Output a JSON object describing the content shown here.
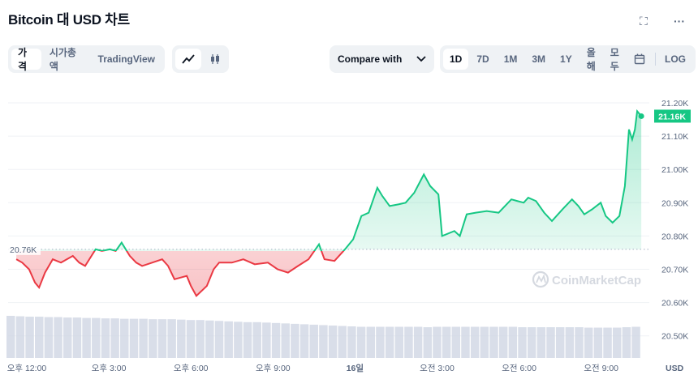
{
  "header": {
    "title": "Bitcoin 대 USD 차트",
    "fullscreen_icon": "expand-icon",
    "more_icon": "more-dots-icon"
  },
  "toolbar": {
    "view_tabs": [
      {
        "label": "가격",
        "active": true
      },
      {
        "label": "시가총액",
        "active": false
      },
      {
        "label": "TradingView",
        "active": false
      }
    ],
    "chart_types": [
      {
        "icon": "line-chart-icon",
        "active": true
      },
      {
        "icon": "candlestick-icon",
        "active": false
      }
    ],
    "compare": {
      "label": "Compare with",
      "icon": "chevron-down-icon"
    },
    "ranges": [
      {
        "label": "1D",
        "active": true
      },
      {
        "label": "7D"
      },
      {
        "label": "1M"
      },
      {
        "label": "3M"
      },
      {
        "label": "1Y"
      },
      {
        "label": "올해"
      },
      {
        "label": "모두"
      }
    ],
    "calendar_icon": "calendar-icon",
    "log_label": "LOG"
  },
  "chart_data": {
    "type": "line",
    "yticks": [
      "21.20K",
      "21.10K",
      "21.00K",
      "20.90K",
      "20.80K",
      "20.70K",
      "20.60K",
      "20.50K"
    ],
    "ytick_values": [
      21.2,
      21.1,
      21.0,
      20.9,
      20.8,
      20.7,
      20.6,
      20.5
    ],
    "xticks": [
      "오후 12:00",
      "오후 3:00",
      "오후 6:00",
      "오후 9:00",
      "16일",
      "오전 3:00",
      "오전 6:00",
      "오전 9:00"
    ],
    "xtick_times": [
      "15 12:00",
      "15 15:00",
      "15 18:00",
      "15 21:00",
      "16 00:00",
      "16 03:00",
      "16 06:00",
      "16 09:00"
    ],
    "y_unit": "USD",
    "baseline": {
      "label": "20.76K",
      "value": 20.76
    },
    "current": {
      "label": "21.16K",
      "value": 21.16
    },
    "colors": {
      "up": "#16c784",
      "down": "#ea3943",
      "volume": "#cfd6e4"
    },
    "watermark": "CoinMarketCap",
    "points": [
      [
        "15 11:37",
        20.73
      ],
      [
        "15 11:50",
        20.72
      ],
      [
        "15 12:05",
        20.7
      ],
      [
        "15 12:18",
        20.66
      ],
      [
        "15 12:27",
        20.645
      ],
      [
        "15 12:40",
        20.69
      ],
      [
        "15 12:57",
        20.73
      ],
      [
        "15 13:15",
        20.72
      ],
      [
        "15 13:41",
        20.74
      ],
      [
        "15 13:55",
        20.72
      ],
      [
        "15 14:08",
        20.71
      ],
      [
        "15 14:31",
        20.76
      ],
      [
        "15 14:45",
        20.755
      ],
      [
        "15 15:02",
        20.76
      ],
      [
        "15 15:15",
        20.755
      ],
      [
        "15 15:28",
        20.78
      ],
      [
        "15 15:46",
        20.74
      ],
      [
        "15 16:00",
        20.72
      ],
      [
        "15 16:13",
        20.71
      ],
      [
        "15 16:35",
        20.72
      ],
      [
        "15 16:57",
        20.73
      ],
      [
        "15 17:10",
        20.71
      ],
      [
        "15 17:24",
        20.67
      ],
      [
        "15 17:51",
        20.68
      ],
      [
        "15 18:00",
        20.65
      ],
      [
        "15 18:12",
        20.62
      ],
      [
        "15 18:35",
        20.65
      ],
      [
        "15 18:50",
        20.7
      ],
      [
        "15 19:02",
        20.72
      ],
      [
        "15 19:30",
        20.72
      ],
      [
        "15 19:55",
        20.73
      ],
      [
        "15 20:20",
        20.715
      ],
      [
        "15 20:49",
        20.72
      ],
      [
        "15 21:10",
        20.7
      ],
      [
        "15 21:33",
        20.69
      ],
      [
        "15 21:55",
        20.71
      ],
      [
        "15 22:18",
        20.73
      ],
      [
        "15 22:41",
        20.775
      ],
      [
        "15 22:53",
        20.73
      ],
      [
        "15 23:15",
        20.725
      ],
      [
        "15 23:38",
        20.76
      ],
      [
        "15 23:56",
        20.79
      ],
      [
        "16 00:14",
        20.86
      ],
      [
        "16 00:30",
        20.87
      ],
      [
        "16 00:49",
        20.945
      ],
      [
        "16 01:00",
        20.92
      ],
      [
        "16 01:16",
        20.89
      ],
      [
        "16 01:35",
        20.895
      ],
      [
        "16 01:51",
        20.9
      ],
      [
        "16 02:10",
        20.93
      ],
      [
        "16 02:31",
        20.985
      ],
      [
        "16 02:45",
        20.95
      ],
      [
        "16 03:03",
        20.925
      ],
      [
        "16 03:11",
        20.8
      ],
      [
        "16 03:38",
        20.815
      ],
      [
        "16 03:50",
        20.8
      ],
      [
        "16 04:05",
        20.865
      ],
      [
        "16 04:25",
        20.87
      ],
      [
        "16 04:49",
        20.875
      ],
      [
        "16 05:15",
        20.87
      ],
      [
        "16 05:43",
        20.91
      ],
      [
        "16 06:10",
        20.9
      ],
      [
        "16 06:20",
        20.915
      ],
      [
        "16 06:37",
        20.905
      ],
      [
        "16 06:55",
        20.87
      ],
      [
        "16 07:12",
        20.845
      ],
      [
        "16 07:35",
        20.88
      ],
      [
        "16 07:56",
        20.91
      ],
      [
        "16 08:10",
        20.89
      ],
      [
        "16 08:23",
        20.865
      ],
      [
        "16 08:40",
        20.88
      ],
      [
        "16 08:59",
        20.9
      ],
      [
        "16 09:10",
        20.86
      ],
      [
        "16 09:25",
        20.84
      ],
      [
        "16 09:40",
        20.86
      ],
      [
        "16 09:52",
        20.95
      ],
      [
        "16 10:01",
        21.12
      ],
      [
        "16 10:08",
        21.09
      ],
      [
        "16 10:14",
        21.12
      ],
      [
        "16 10:19",
        21.175
      ],
      [
        "16 10:28",
        21.16
      ]
    ],
    "volume_relative": [
      1,
      0.99,
      0.98,
      0.98,
      0.97,
      0.97,
      0.96,
      0.96,
      0.95,
      0.95,
      0.94,
      0.94,
      0.93,
      0.93,
      0.93,
      0.92,
      0.92,
      0.92,
      0.91,
      0.9,
      0.9,
      0.89,
      0.88,
      0.87,
      0.86,
      0.85,
      0.85,
      0.84,
      0.83,
      0.82,
      0.81,
      0.8,
      0.79,
      0.78,
      0.77,
      0.76,
      0.75,
      0.74,
      0.74,
      0.74,
      0.74,
      0.74,
      0.74,
      0.74,
      0.73,
      0.74,
      0.74,
      0.74,
      0.74,
      0.74,
      0.74,
      0.74,
      0.74,
      0.74,
      0.73,
      0.73,
      0.73,
      0.73,
      0.73,
      0.73,
      0.73,
      0.72,
      0.72,
      0.72,
      0.72,
      0.73,
      0.74
    ]
  }
}
